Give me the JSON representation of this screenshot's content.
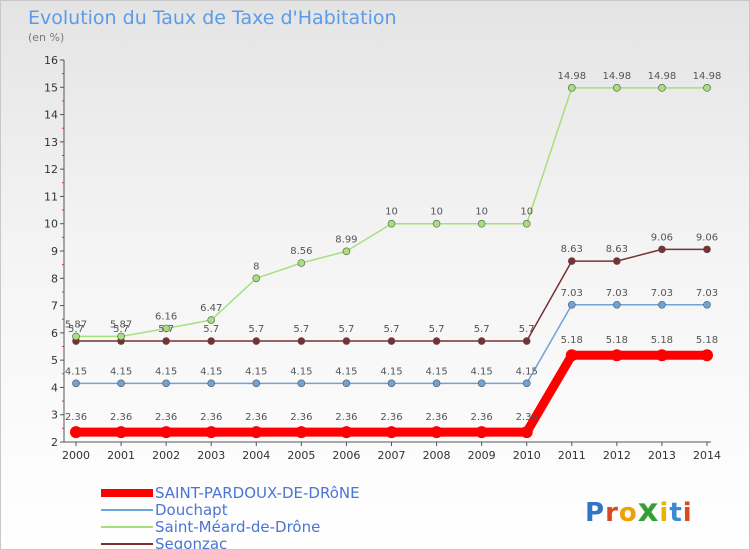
{
  "header": {
    "title": "Evolution du Taux de Taxe d'Habitation",
    "subtitle": "(en %)"
  },
  "logo": {
    "text": "Proxiti",
    "colors": [
      "#2f74c9",
      "#d94a1c",
      "#f0a000",
      "#34a032",
      "#e8b400",
      "#3a8ad6",
      "#d94a1c"
    ]
  },
  "chart_data": {
    "type": "line",
    "x": [
      "2000",
      "2001",
      "2002",
      "2003",
      "2004",
      "2005",
      "2006",
      "2007",
      "2008",
      "2009",
      "2010",
      "2011",
      "2012",
      "2013",
      "2014"
    ],
    "ylim": [
      2,
      16
    ],
    "yticks": [
      2,
      3,
      4,
      5,
      6,
      7,
      8,
      9,
      10,
      11,
      12,
      13,
      14,
      15,
      16
    ],
    "grid": false,
    "legend_position": "bottom-left",
    "series": [
      {
        "name": "SAINT-PARDOUX-DE-DRôNE",
        "color": "#ff0000",
        "values": [
          2.36,
          2.36,
          2.36,
          2.36,
          2.36,
          2.36,
          2.36,
          2.36,
          2.36,
          2.36,
          2.36,
          5.18,
          5.18,
          5.18,
          5.18
        ],
        "labels": [
          "2.36",
          "2.36",
          "2.36",
          "2.36",
          "2.36",
          "2.36",
          "2.36",
          "2.36",
          "2.36",
          "2.36",
          "2.36",
          "5.18",
          "5.18",
          "5.18",
          "5.18"
        ]
      },
      {
        "name": "Douchapt",
        "color": "#6fa3d8",
        "values": [
          4.15,
          4.15,
          4.15,
          4.15,
          4.15,
          4.15,
          4.15,
          4.15,
          4.15,
          4.15,
          4.15,
          7.03,
          7.03,
          7.03,
          7.03
        ],
        "labels": [
          "4.15",
          "4.15",
          "4.15",
          "4.15",
          "4.15",
          "4.15",
          "4.15",
          "4.15",
          "4.15",
          "4.15",
          "4.15",
          "7.03",
          "7.03",
          "7.03",
          "7.03"
        ]
      },
      {
        "name": "Saint-Méard-de-Drône",
        "color": "#a6e07a",
        "values": [
          5.87,
          5.87,
          6.16,
          6.47,
          8,
          8.56,
          8.99,
          10,
          10,
          10,
          10,
          14.98,
          14.98,
          14.98,
          14.98
        ],
        "labels": [
          "5.87",
          "5.87",
          "6.16",
          "6.47",
          "8",
          "8.56",
          "8.99",
          "10",
          "10",
          "10",
          "10",
          "14.98",
          "14.98",
          "14.98",
          "14.98"
        ]
      },
      {
        "name": "Segonzac",
        "color": "#7a3030",
        "values": [
          5.7,
          5.7,
          5.7,
          5.7,
          5.7,
          5.7,
          5.7,
          5.7,
          5.7,
          5.7,
          5.7,
          8.63,
          8.63,
          9.06,
          9.06
        ],
        "labels": [
          "5.7",
          "5.7",
          "5.7",
          "5.7",
          "5.7",
          "5.7",
          "5.7",
          "5.7",
          "5.7",
          "5.7",
          "5.7",
          "8.63",
          "8.63",
          "9.06",
          "9.06"
        ]
      }
    ]
  }
}
